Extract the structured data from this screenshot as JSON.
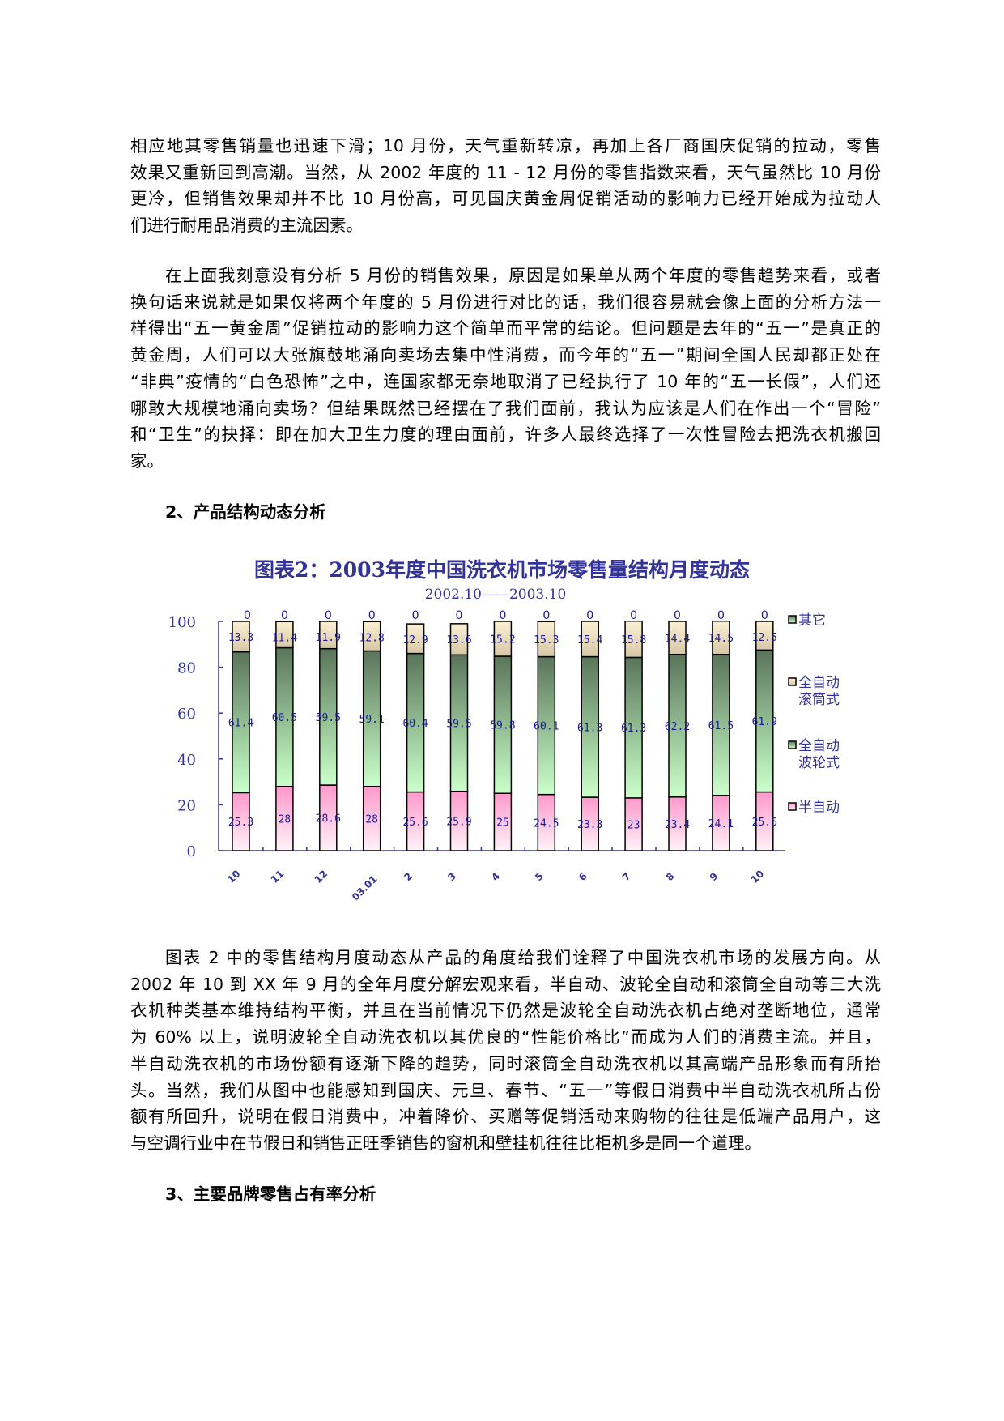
{
  "paragraph1": [
    "相应地其零售销量也迅速下滑；10 月份，天气重新转凉，再加上各厂商国庆促销的拉动，零售",
    "效果又重新回到高潮。当然，从 2002 年度的 11 - 12 月份的零售指数来看，天气虽然比 10 月份",
    "更冷，但销售效果却并不比 10 月份高，可见国庆黄金周促销活动的影响力已经开始成为拉动人",
    "们进行耐用品消费的主流因素。"
  ],
  "paragraph2": [
    "在上面我刻意没有分析 5 月份的销售效果，原因是如果单从两个年度的零售趋势来看，或者",
    "换句话来说就是如果仅将两个年度的 5 月份进行对比的话，我们很容易就会像上面的分析方法一",
    "样得出“五一黄金周”促销拉动的影响力这个简单而平常的结论。但问题是去年的“五一”是真正的",
    "黄金周，人们可以大张旗鼓地涌向卖场去集中性消费，而今年的“五一”期间全国人民却都正处在",
    "“非典”疫情的“白色恐怖”之中，连国家都无奈地取消了已经执行了 10 年的“五一长假”，人们还",
    "哪敢大规模地涌向卖场？但结果既然已经摆在了我们面前，我认为应该是人们在作出一个“冒险”",
    "和“卫生”的抉择：即在加大卫生力度的理由面前，许多人最终选择了一次性冒险去把洗衣机搬回",
    "家。"
  ],
  "heading2": "2、产品结构动态分析",
  "paragraph3": [
    "图表 2 中的零售结构月度动态从产品的角度给我们诠释了中国洗衣机市场的发展方向。从",
    "2002 年 10 到 XX 年 9 月的全年月度分解宏观来看，半自动、波轮全自动和滚筒全自动等三大洗",
    "衣机种类基本维持结构平衡，并且在当前情况下仍然是波轮全自动洗衣机占绝对垄断地位，通常",
    "为 60% 以上，说明波轮全自动洗衣机以其优良的“性能价格比”而成为人们的消费主流。并且，",
    "半自动洗衣机的市场份额有逐渐下降的趋势，同时滚筒全自动洗衣机以其高端产品形象而有所抬",
    "头。当然，我们从图中也能感知到国庆、元旦、春节、“五一”等假日消费中半自动洗衣机所占份",
    "额有所回升，说明在假日消费中，冲着降价、买赠等促销活动来购物的往往是低端产品用户，这",
    "与空调行业中在节假日和销售正旺季销售的窗机和壁挂机往往比柜机多是同一个道理。"
  ],
  "heading3": "3、主要品牌零售占有率分析",
  "chart_data": {
    "type": "bar",
    "stacked": true,
    "title": "图表2：2003年度中国洗衣机市场零售量结构月度动态",
    "subtitle": "2002.10——2003.10",
    "categories": [
      "10",
      "11",
      "12",
      "03.01",
      "2",
      "3",
      "4",
      "5",
      "6",
      "7",
      "8",
      "9",
      "10"
    ],
    "ylim": [
      0,
      100
    ],
    "yticks": [
      "0",
      "20",
      "40",
      "60",
      "80",
      "100"
    ],
    "legend_position": "right",
    "legend": [
      "其它",
      "全自动滚筒式",
      "全自动波轮式",
      "半自动"
    ],
    "series": [
      {
        "name": "半自动",
        "values": [
          25.3,
          28,
          28.6,
          28,
          25.6,
          25.9,
          25,
          24.5,
          23.3,
          23,
          23.4,
          24.1,
          25.6
        ],
        "color": "#ff99cc"
      },
      {
        "name": "全自动波轮式",
        "values": [
          61.4,
          60.5,
          59.5,
          59.1,
          60.4,
          59.5,
          59.8,
          60.1,
          61.3,
          61.3,
          62.2,
          61.5,
          61.9
        ],
        "color": "#6b8a6b"
      },
      {
        "name": "全自动滚筒式",
        "values": [
          13.3,
          11.4,
          11.9,
          12.8,
          12.9,
          13.6,
          15.2,
          15.3,
          15.4,
          15.8,
          14.4,
          14.5,
          12.5
        ],
        "color": "#f3e8cc"
      },
      {
        "name": "其它",
        "values": [
          0,
          0,
          0,
          0,
          0,
          0,
          0,
          0,
          0,
          0,
          0,
          0,
          0
        ],
        "color": "#ffffff"
      }
    ],
    "text_color": "#333399"
  }
}
